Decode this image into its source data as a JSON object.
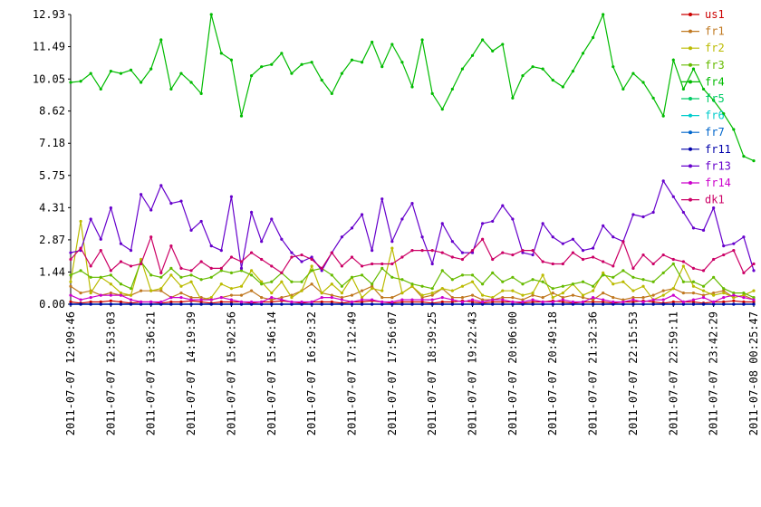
{
  "chart_data": {
    "type": "line",
    "categories": [
      "2011-07-07 12:09:46",
      null,
      null,
      null,
      "2011-07-07 12:53:03",
      null,
      null,
      null,
      "2011-07-07 13:36:21",
      null,
      null,
      null,
      "2011-07-07 14:19:39",
      null,
      null,
      null,
      "2011-07-07 15:02:56",
      null,
      null,
      null,
      "2011-07-07 15:46:14",
      null,
      null,
      null,
      "2011-07-07 16:29:32",
      null,
      null,
      null,
      "2011-07-07 17:12:49",
      null,
      null,
      null,
      "2011-07-07 17:56:07",
      null,
      null,
      null,
      "2011-07-07 18:39:25",
      null,
      null,
      null,
      "2011-07-07 19:22:43",
      null,
      null,
      null,
      "2011-07-07 20:06:00",
      null,
      null,
      null,
      "2011-07-07 20:49:18",
      null,
      null,
      null,
      "2011-07-07 21:32:36",
      null,
      null,
      null,
      "2011-07-07 22:15:53",
      null,
      null,
      null,
      "2011-07-07 22:59:11",
      null,
      null,
      null,
      "2011-07-07 23:42:29",
      null,
      null,
      null,
      "2011-07-08 00:25:47"
    ],
    "ylim": [
      0,
      12.93
    ],
    "yticks": [
      {
        "value": 0,
        "label": "0.00"
      },
      {
        "value": 1.437,
        "label": "1.44"
      },
      {
        "value": 2.873,
        "label": "2.87"
      },
      {
        "value": 4.31,
        "label": "4.31"
      },
      {
        "value": 5.747,
        "label": "5.75"
      },
      {
        "value": 7.183,
        "label": "7.18"
      },
      {
        "value": 8.62,
        "label": "8.62"
      },
      {
        "value": 10.05,
        "label": "10.05"
      },
      {
        "value": 11.493,
        "label": "11.49"
      },
      {
        "value": 12.93,
        "label": "12.93"
      }
    ],
    "series": [
      {
        "name": "us1",
        "color": "#cc0000",
        "values": [
          0.1,
          0.05,
          0.1,
          0.1,
          0.15,
          0.1,
          0.05,
          0.1,
          0.1,
          0.05,
          0.1,
          0.1,
          0.15,
          0.1,
          0.05,
          0.1,
          0.1,
          0.1,
          0.05,
          0.1,
          0.1,
          0.15,
          0.1,
          0.05,
          0.1,
          0.1,
          0.1,
          0.05,
          0.1,
          0.1,
          0.15,
          0.1,
          0.05,
          0.1,
          0.1,
          0.1,
          0.05,
          0.1,
          0.1,
          0.15,
          0.1,
          0.05,
          0.1,
          0.1,
          0.1,
          0.05,
          0.1,
          0.1,
          0.15,
          0.1,
          0.05,
          0.1,
          0.1,
          0.1,
          0.05,
          0.1,
          0.1,
          0.15,
          0.1,
          0.05,
          0.1,
          0.1,
          0.1,
          0.05,
          0.1,
          0.1,
          0.15,
          0.1,
          0.1
        ]
      },
      {
        "name": "fr1",
        "color": "#c07820",
        "values": [
          0.8,
          0.5,
          0.6,
          0.4,
          0.5,
          0.4,
          0.4,
          0.6,
          0.6,
          0.6,
          0.3,
          0.5,
          0.3,
          0.3,
          0.2,
          0.3,
          0.4,
          0.4,
          0.6,
          0.3,
          0.2,
          0.3,
          0.4,
          0.6,
          0.9,
          0.5,
          0.4,
          0.3,
          0.4,
          0.6,
          0.8,
          0.3,
          0.3,
          0.5,
          0.8,
          0.3,
          0.4,
          0.7,
          0.3,
          0.3,
          0.4,
          0.2,
          0.2,
          0.3,
          0.3,
          0.2,
          0.4,
          0.3,
          0.5,
          0.3,
          0.4,
          0.3,
          0.2,
          0.5,
          0.3,
          0.2,
          0.3,
          0.3,
          0.4,
          0.6,
          0.7,
          0.5,
          0.5,
          0.4,
          0.5,
          0.6,
          0.3,
          0.4,
          0.2
        ]
      },
      {
        "name": "fr2",
        "color": "#bbbb00",
        "values": [
          1.0,
          3.7,
          0.5,
          1.2,
          0.9,
          0.5,
          0.4,
          2.0,
          0.6,
          0.7,
          1.3,
          0.8,
          1.0,
          0.2,
          0.3,
          0.9,
          0.7,
          0.8,
          1.5,
          1.0,
          0.5,
          1.0,
          0.3,
          0.6,
          1.7,
          0.5,
          0.9,
          0.5,
          1.2,
          0.3,
          0.7,
          0.6,
          2.5,
          0.5,
          0.8,
          0.4,
          0.5,
          0.7,
          0.6,
          0.8,
          1.0,
          0.4,
          0.3,
          0.6,
          0.6,
          0.4,
          0.5,
          1.3,
          0.3,
          0.5,
          0.9,
          0.4,
          0.6,
          1.4,
          0.9,
          1.0,
          0.6,
          0.8,
          0.2,
          0.4,
          0.7,
          1.7,
          0.8,
          0.6,
          0.4,
          0.5,
          0.3,
          0.4,
          0.6
        ]
      },
      {
        "name": "fr3",
        "color": "#66bb00",
        "values": [
          1.3,
          1.5,
          1.2,
          1.2,
          1.3,
          0.9,
          0.7,
          1.9,
          1.3,
          1.2,
          1.6,
          1.2,
          1.3,
          1.1,
          1.2,
          1.5,
          1.4,
          1.5,
          1.3,
          0.9,
          1.0,
          1.4,
          1.0,
          1.0,
          1.5,
          1.6,
          1.3,
          0.8,
          1.2,
          1.3,
          0.9,
          1.6,
          1.2,
          1.1,
          0.9,
          0.8,
          0.7,
          1.5,
          1.1,
          1.3,
          1.3,
          0.9,
          1.4,
          1.0,
          1.2,
          0.9,
          1.1,
          1.0,
          0.7,
          0.8,
          0.9,
          1.0,
          0.8,
          1.3,
          1.2,
          1.5,
          1.2,
          1.1,
          1.0,
          1.4,
          1.8,
          1.0,
          1.0,
          0.8,
          1.2,
          0.7,
          0.5,
          0.5,
          0.3
        ]
      },
      {
        "name": "fr4",
        "color": "#00bb00",
        "values": [
          9.9,
          9.95,
          10.3,
          9.6,
          10.4,
          10.3,
          10.45,
          9.9,
          10.5,
          11.8,
          9.6,
          10.3,
          9.9,
          9.4,
          12.93,
          11.2,
          10.9,
          8.4,
          10.2,
          10.6,
          10.7,
          11.2,
          10.3,
          10.7,
          10.8,
          10.0,
          9.4,
          10.3,
          10.9,
          10.8,
          11.7,
          10.6,
          11.6,
          10.8,
          9.7,
          11.8,
          9.4,
          8.7,
          9.6,
          10.5,
          11.1,
          11.8,
          11.3,
          11.6,
          9.2,
          10.2,
          10.6,
          10.5,
          10.0,
          9.7,
          10.4,
          11.2,
          11.9,
          12.93,
          10.6,
          9.6,
          10.3,
          9.9,
          9.2,
          8.4,
          10.9,
          9.6,
          10.5,
          9.6,
          9.1,
          8.5,
          7.8,
          6.6,
          6.4
        ]
      },
      {
        "name": "fr5",
        "color": "#00cc66",
        "values": [
          0,
          0,
          0,
          0,
          0,
          0,
          0,
          0,
          0,
          0,
          0,
          0,
          0,
          0,
          0,
          0,
          0,
          0,
          0,
          0,
          0,
          0,
          0,
          0,
          0,
          0,
          0,
          0,
          0,
          0,
          0,
          0,
          0,
          0,
          0,
          0,
          0,
          0,
          0,
          0,
          0,
          0,
          0,
          0,
          0,
          0,
          0,
          0,
          0,
          0,
          0,
          0,
          0,
          0,
          0,
          0,
          0,
          0,
          0,
          0,
          0,
          0,
          0,
          0,
          0,
          0,
          0,
          0,
          0
        ]
      },
      {
        "name": "fr6",
        "color": "#00cccc",
        "values": [
          0,
          0,
          0,
          0,
          0,
          0,
          0,
          0,
          0,
          0,
          0,
          0,
          0,
          0,
          0,
          0,
          0,
          0,
          0,
          0,
          0,
          0,
          0,
          0,
          0,
          0,
          0,
          0,
          0,
          0,
          0,
          0,
          0,
          0,
          0,
          0,
          0,
          0,
          0,
          0,
          0,
          0,
          0,
          0,
          0,
          0,
          0,
          0,
          0,
          0,
          0,
          0,
          0,
          0,
          0,
          0,
          0,
          0,
          0,
          0,
          0,
          0,
          0,
          0,
          0,
          0,
          0,
          0,
          0
        ]
      },
      {
        "name": "fr7",
        "color": "#0066cc",
        "values": [
          0,
          0,
          0,
          0,
          0,
          0,
          0,
          0,
          0,
          0,
          0,
          0,
          0,
          0,
          0,
          0,
          0,
          0,
          0,
          0,
          0,
          0,
          0,
          0,
          0,
          0,
          0,
          0,
          0,
          0,
          0,
          0,
          0,
          0,
          0,
          0,
          0,
          0,
          0,
          0,
          0,
          0,
          0,
          0,
          0,
          0,
          0,
          0,
          0,
          0,
          0,
          0,
          0,
          0,
          0,
          0,
          0,
          0,
          0,
          0,
          0,
          0,
          0,
          0,
          0,
          0,
          0,
          0,
          0
        ]
      },
      {
        "name": "fr11",
        "color": "#0000aa",
        "values": [
          0,
          0,
          0,
          0,
          0,
          0,
          0,
          0,
          0,
          0,
          0,
          0,
          0,
          0,
          0,
          0,
          0,
          0,
          0,
          0,
          0,
          0,
          0,
          0,
          0,
          0,
          0,
          0,
          0,
          0,
          0,
          0,
          0,
          0,
          0,
          0,
          0,
          0,
          0,
          0,
          0,
          0,
          0,
          0,
          0,
          0,
          0,
          0,
          0,
          0,
          0,
          0,
          0,
          0,
          0,
          0,
          0,
          0,
          0,
          0,
          0,
          0,
          0,
          0,
          0,
          0,
          0,
          0,
          0
        ]
      },
      {
        "name": "fr13",
        "color": "#6600cc",
        "values": [
          2.3,
          2.4,
          3.8,
          2.9,
          4.3,
          2.7,
          2.4,
          4.9,
          4.2,
          5.3,
          4.5,
          4.6,
          3.3,
          3.7,
          2.6,
          2.4,
          4.8,
          1.6,
          4.1,
          2.8,
          3.8,
          2.9,
          2.3,
          1.9,
          2.1,
          1.5,
          2.3,
          3.0,
          3.4,
          4.0,
          2.4,
          4.7,
          2.8,
          3.8,
          4.5,
          3.0,
          1.8,
          3.6,
          2.8,
          2.3,
          2.3,
          3.6,
          3.7,
          4.4,
          3.8,
          2.3,
          2.2,
          3.6,
          3.0,
          2.7,
          2.9,
          2.4,
          2.5,
          3.5,
          3.0,
          2.8,
          4.0,
          3.9,
          4.1,
          5.5,
          4.8,
          4.1,
          3.4,
          3.3,
          4.3,
          2.6,
          2.7,
          3.0,
          1.5
        ]
      },
      {
        "name": "fr14",
        "color": "#cc00cc",
        "values": [
          0.4,
          0.2,
          0.3,
          0.4,
          0.4,
          0.4,
          0.2,
          0.1,
          0.1,
          0.1,
          0.3,
          0.3,
          0.2,
          0.2,
          0.2,
          0.3,
          0.2,
          0.1,
          0.1,
          0.1,
          0.3,
          0.2,
          0.1,
          0.1,
          0.1,
          0.3,
          0.3,
          0.2,
          0.1,
          0.2,
          0.2,
          0.1,
          0.1,
          0.2,
          0.2,
          0.2,
          0.2,
          0.3,
          0.2,
          0.1,
          0.2,
          0.1,
          0.2,
          0.2,
          0.1,
          0.1,
          0.2,
          0.1,
          0.1,
          0.2,
          0.1,
          0.1,
          0.3,
          0.2,
          0.1,
          0.1,
          0.2,
          0.1,
          0.2,
          0.2,
          0.4,
          0.1,
          0.2,
          0.3,
          0.1,
          0.3,
          0.4,
          0.3,
          0.2
        ]
      },
      {
        "name": "dk1",
        "color": "#cc0066",
        "values": [
          2.0,
          2.5,
          1.7,
          2.4,
          1.5,
          1.9,
          1.7,
          1.8,
          3.0,
          1.4,
          2.6,
          1.6,
          1.5,
          1.9,
          1.6,
          1.6,
          2.1,
          1.9,
          2.3,
          2.0,
          1.7,
          1.4,
          2.1,
          2.2,
          2.0,
          1.6,
          2.3,
          1.7,
          2.1,
          1.7,
          1.8,
          1.8,
          1.8,
          2.1,
          2.4,
          2.4,
          2.4,
          2.3,
          2.1,
          2.0,
          2.4,
          2.9,
          2.0,
          2.3,
          2.2,
          2.4,
          2.4,
          1.9,
          1.8,
          1.8,
          2.3,
          2.0,
          2.1,
          1.9,
          1.7,
          2.8,
          1.6,
          2.2,
          1.8,
          2.2,
          2.0,
          1.9,
          1.6,
          1.5,
          2.0,
          2.2,
          2.4,
          1.4,
          1.8
        ]
      }
    ]
  }
}
